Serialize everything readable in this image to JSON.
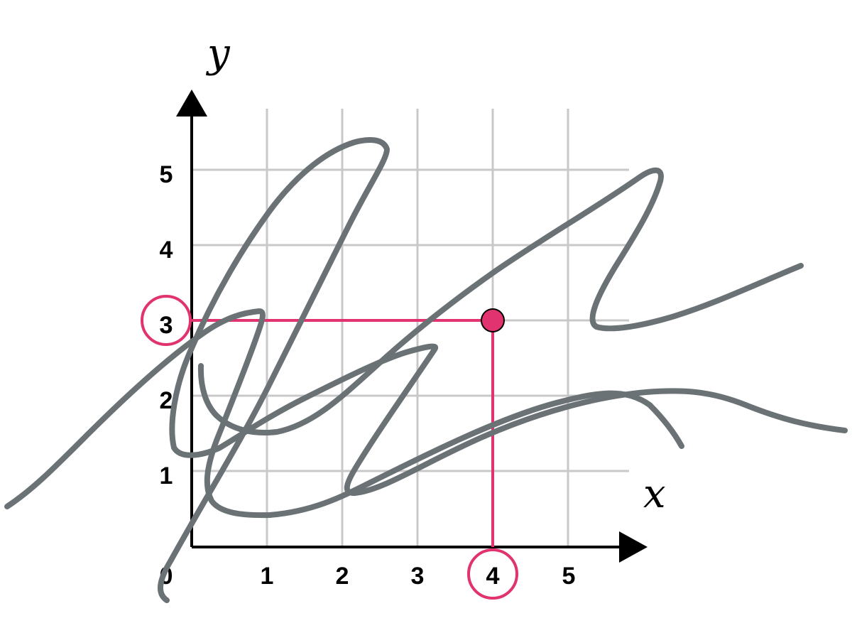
{
  "x_axis": {
    "label": "x",
    "ticks": [
      "0",
      "1",
      "2",
      "3",
      "4",
      "5"
    ]
  },
  "y_axis": {
    "label": "y",
    "ticks": [
      "1",
      "2",
      "3",
      "4",
      "5"
    ]
  },
  "point": {
    "x": 4,
    "y": 3
  },
  "highlighted_ticks": {
    "x": "4",
    "y": "3"
  },
  "colors": {
    "highlight": "#e0336f",
    "grid": "#c8c8c8",
    "axis": "#000000",
    "scribble": "#6b7276"
  }
}
